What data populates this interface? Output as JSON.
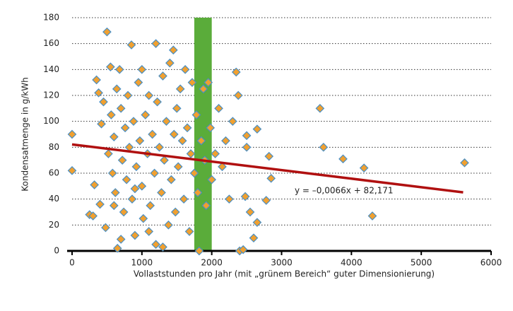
{
  "chart_data": {
    "type": "scatter",
    "xlabel": "Vollaststunden pro Jahr (mit „grünem Bereich“ guter Dimensionierung)",
    "ylabel": "Kondensatmenge in g/kWh",
    "xlim": [
      0,
      6000
    ],
    "xticks": [
      0,
      1000,
      2000,
      3000,
      4000,
      5000,
      6000
    ],
    "ylim": [
      0,
      180
    ],
    "yticks": [
      0,
      20,
      40,
      60,
      80,
      100,
      120,
      140,
      160,
      180
    ],
    "grid": true,
    "marker_color": "#f0a030",
    "marker_edge": "#4a8fc4",
    "highlight_range": [
      1750,
      2000
    ],
    "highlight_color": "#5aac3a",
    "trendline": {
      "slope": -0.0066,
      "intercept": 82.171,
      "xrange": [
        0,
        5600
      ],
      "label": "y = –0,0066x + 82,171",
      "color": "#b01010"
    },
    "x": [
      0,
      0,
      250,
      300,
      320,
      350,
      380,
      400,
      420,
      450,
      480,
      500,
      520,
      550,
      560,
      580,
      600,
      620,
      640,
      650,
      680,
      700,
      720,
      740,
      760,
      780,
      800,
      820,
      850,
      860,
      880,
      900,
      920,
      950,
      970,
      1000,
      1000,
      1020,
      1050,
      1080,
      1100,
      1120,
      1150,
      1180,
      1200,
      1200,
      1220,
      1250,
      1280,
      1300,
      1320,
      1350,
      1380,
      1400,
      1420,
      1450,
      1460,
      1480,
      1500,
      1520,
      1550,
      1580,
      1600,
      1620,
      1650,
      1680,
      1700,
      1720,
      1750,
      1780,
      1800,
      1820,
      1850,
      1880,
      1900,
      1920,
      1950,
      1980,
      2000,
      2050,
      2100,
      2150,
      2200,
      2250,
      2300,
      2350,
      2380,
      2400,
      2450,
      2480,
      2500,
      2500,
      2550,
      2600,
      2650,
      2650,
      2780,
      2820,
      2850,
      3550,
      3600,
      3880,
      4180,
      4300,
      5620,
      700,
      900,
      1100,
      1300,
      600
    ],
    "values": [
      90,
      62,
      28,
      27,
      51,
      132,
      122,
      36,
      98,
      115,
      18,
      169,
      75,
      142,
      105,
      60,
      88,
      45,
      125,
      2,
      140,
      110,
      70,
      30,
      95,
      55,
      120,
      80,
      159,
      40,
      100,
      12,
      65,
      130,
      85,
      140,
      50,
      25,
      105,
      75,
      120,
      35,
      90,
      60,
      160,
      5,
      115,
      80,
      45,
      135,
      70,
      100,
      20,
      145,
      55,
      155,
      90,
      30,
      110,
      65,
      125,
      85,
      40,
      140,
      95,
      15,
      75,
      130,
      60,
      105,
      45,
      0,
      85,
      125,
      70,
      35,
      130,
      95,
      55,
      75,
      110,
      65,
      85,
      40,
      100,
      138,
      120,
      0,
      1,
      42,
      89,
      80,
      30,
      10,
      94,
      22,
      39,
      73,
      56,
      110,
      80,
      71,
      64,
      27,
      68,
      9,
      48,
      15,
      3,
      35
    ]
  }
}
